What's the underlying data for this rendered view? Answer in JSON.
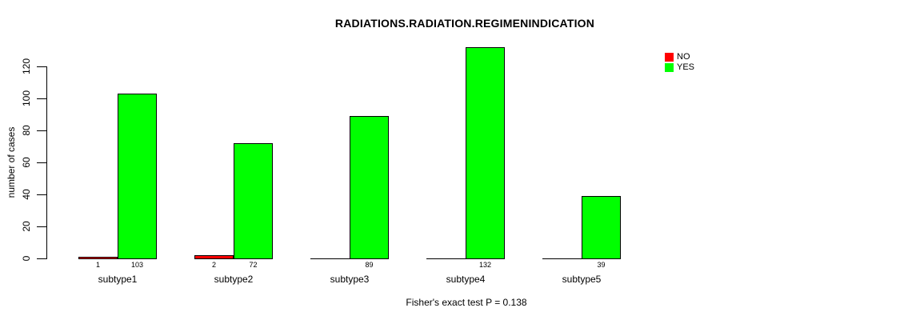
{
  "chart_data": {
    "type": "bar",
    "title": "RADIATIONS.RADIATION.REGIMENINDICATION",
    "ylabel": "number of cases",
    "xlabel": "",
    "categories": [
      "subtype1",
      "subtype2",
      "subtype3",
      "subtype4",
      "subtype5"
    ],
    "series": [
      {
        "name": "NO",
        "color": "#FF0000",
        "values": [
          1,
          2,
          0,
          0,
          0
        ]
      },
      {
        "name": "YES",
        "color": "#00FF00",
        "values": [
          103,
          72,
          89,
          132,
          39
        ]
      }
    ],
    "value_labels_shown": [
      "1",
      "103",
      "2",
      "72",
      "89",
      "132",
      "39"
    ],
    "value_labels_hide_zero": true,
    "yticks": [
      0,
      20,
      40,
      60,
      80,
      100,
      120
    ],
    "ylim": [
      0,
      132
    ],
    "grid": false,
    "legend_position": "top-right",
    "legend_items": [
      {
        "label": "NO",
        "color": "#FF0000"
      },
      {
        "label": "YES",
        "color": "#00FF00"
      }
    ],
    "annotation": "Fisher's exact test P = 0.138"
  },
  "colors": {
    "background": "#FFFFFF",
    "axis": "#000000",
    "text": "#000000",
    "no_bar": "#FF0000",
    "yes_bar": "#00FF00"
  }
}
